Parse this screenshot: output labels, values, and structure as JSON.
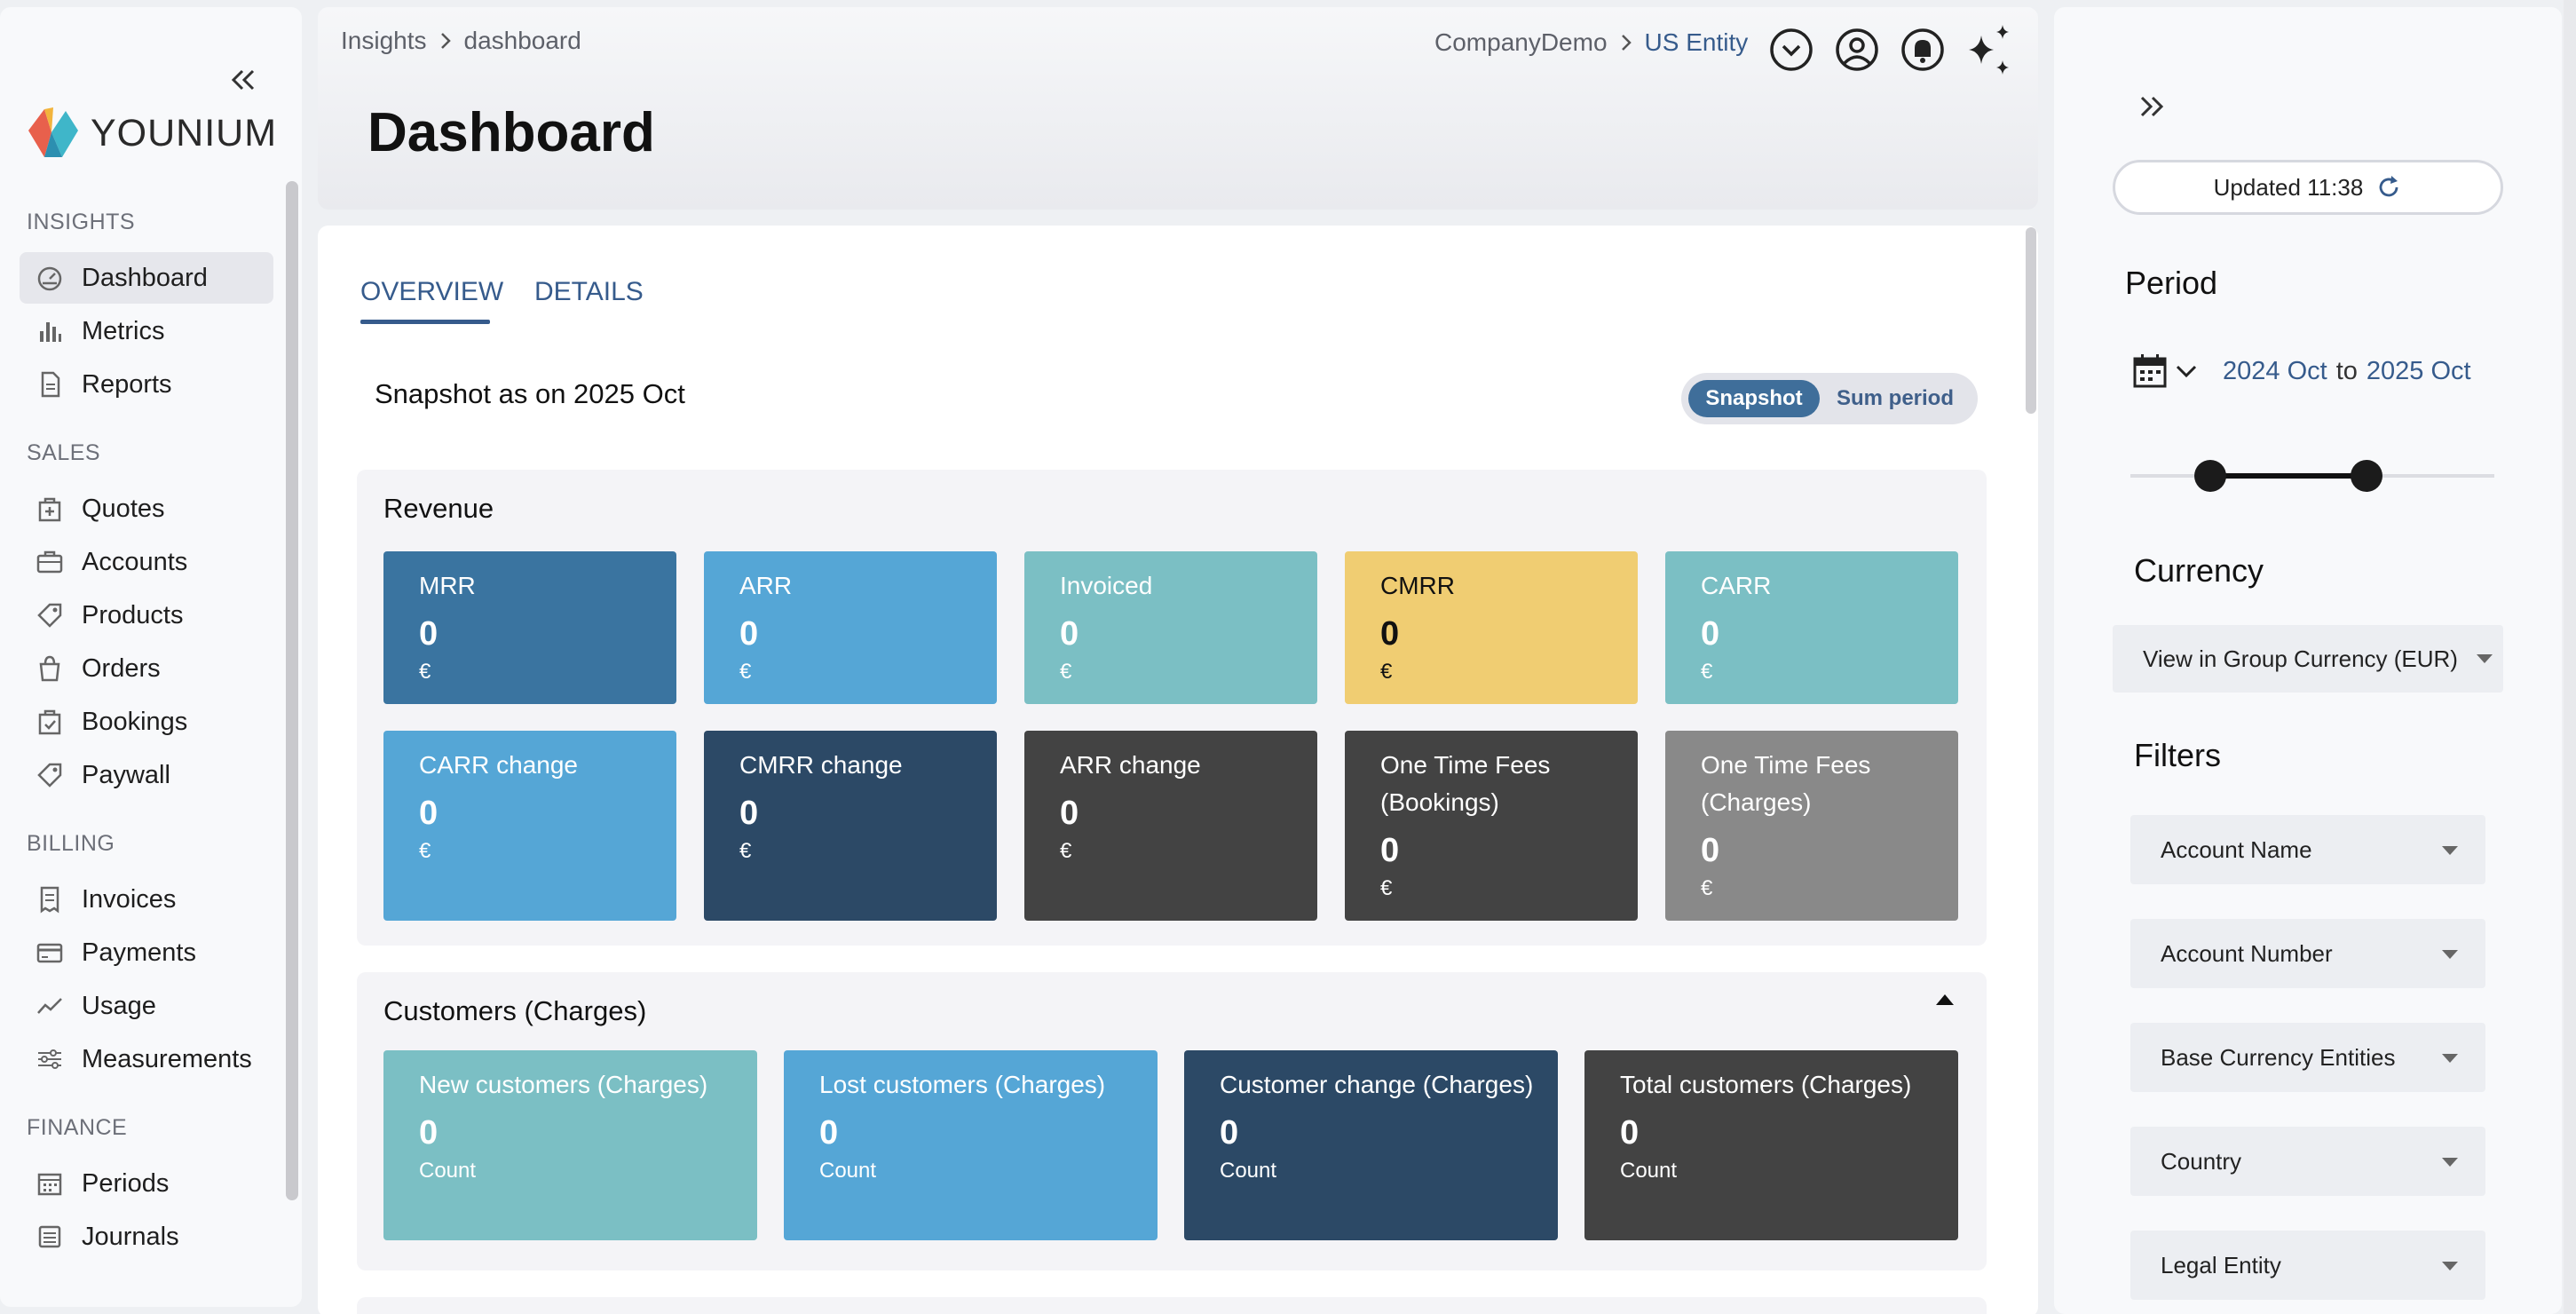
{
  "sidebar": {
    "logo_text": "YOUNIUM",
    "sections": [
      {
        "title": "INSIGHTS",
        "items": [
          {
            "label": "Dashboard",
            "icon": "dashboard-icon",
            "active": true
          },
          {
            "label": "Metrics",
            "icon": "bar-chart-icon"
          },
          {
            "label": "Reports",
            "icon": "document-icon"
          }
        ]
      },
      {
        "title": "SALES",
        "items": [
          {
            "label": "Quotes",
            "icon": "quote-icon"
          },
          {
            "label": "Accounts",
            "icon": "briefcase-icon"
          },
          {
            "label": "Products",
            "icon": "tag-icon"
          },
          {
            "label": "Orders",
            "icon": "bag-icon"
          },
          {
            "label": "Bookings",
            "icon": "booking-icon"
          },
          {
            "label": "Paywall",
            "icon": "tag-icon"
          }
        ]
      },
      {
        "title": "BILLING",
        "items": [
          {
            "label": "Invoices",
            "icon": "invoice-icon"
          },
          {
            "label": "Payments",
            "icon": "card-icon"
          },
          {
            "label": "Usage",
            "icon": "trend-icon"
          },
          {
            "label": "Measurements",
            "icon": "sliders-icon"
          }
        ]
      },
      {
        "title": "FINANCE",
        "items": [
          {
            "label": "Periods",
            "icon": "calendar-icon"
          },
          {
            "label": "Journals",
            "icon": "journal-icon"
          }
        ]
      }
    ]
  },
  "header": {
    "breadcrumb": [
      "Insights",
      "dashboard"
    ],
    "title": "Dashboard",
    "company": "CompanyDemo",
    "entity": "US Entity"
  },
  "main": {
    "tabs": [
      "OVERVIEW",
      "DETAILS"
    ],
    "active_tab": "OVERVIEW",
    "snapshot_title": "Snapshot as on 2025 Oct",
    "toggle": {
      "on": "Snapshot",
      "off": "Sum period"
    },
    "revenue": {
      "title": "Revenue",
      "row1": [
        {
          "title": "MRR",
          "value": "0",
          "unit": "€",
          "color": "#3a74a0"
        },
        {
          "title": "ARR",
          "value": "0",
          "unit": "€",
          "color": "#55a6d6"
        },
        {
          "title": "Invoiced",
          "value": "0",
          "unit": "€",
          "color": "#7bbfc4"
        },
        {
          "title": "CMRR",
          "value": "0",
          "unit": "€",
          "color": "#f0cd72"
        },
        {
          "title": "CARR",
          "value": "0",
          "unit": "€",
          "color": "#7bbfc4"
        }
      ],
      "row2": [
        {
          "title": "CARR change",
          "value": "0",
          "unit": "€",
          "color": "#55a6d6"
        },
        {
          "title": "CMRR change",
          "value": "0",
          "unit": "€",
          "color": "#2c4966"
        },
        {
          "title": "ARR change",
          "value": "0",
          "unit": "€",
          "color": "#434343"
        },
        {
          "title": "One Time Fees (Bookings)",
          "value": "0",
          "unit": "€",
          "color": "#434343"
        },
        {
          "title": "One Time Fees (Charges)",
          "value": "0",
          "unit": "€",
          "color": "#898989"
        }
      ]
    },
    "customers": {
      "title": "Customers (Charges)",
      "cards": [
        {
          "title": "New customers (Charges)",
          "value": "0",
          "unit": "Count",
          "color": "#7bbfc4"
        },
        {
          "title": "Lost customers (Charges)",
          "value": "0",
          "unit": "Count",
          "color": "#55a6d6"
        },
        {
          "title": "Customer change (Charges)",
          "value": "0",
          "unit": "Count",
          "color": "#2c4966"
        },
        {
          "title": "Total customers (Charges)",
          "value": "0",
          "unit": "Count",
          "color": "#434343"
        }
      ]
    }
  },
  "right_panel": {
    "updated": "Updated 11:38",
    "period_heading": "Period",
    "period_from": "2024 Oct",
    "period_word": "to",
    "period_to": "2025 Oct",
    "currency_heading": "Currency",
    "currency_value": "View in Group Currency (EUR)",
    "filters_heading": "Filters",
    "filters": [
      "Account Name",
      "Account Number",
      "Base Currency Entities",
      "Country",
      "Legal Entity"
    ]
  },
  "colors": {
    "accent": "#365b8c",
    "toggle_on": "#3f6e9a"
  }
}
